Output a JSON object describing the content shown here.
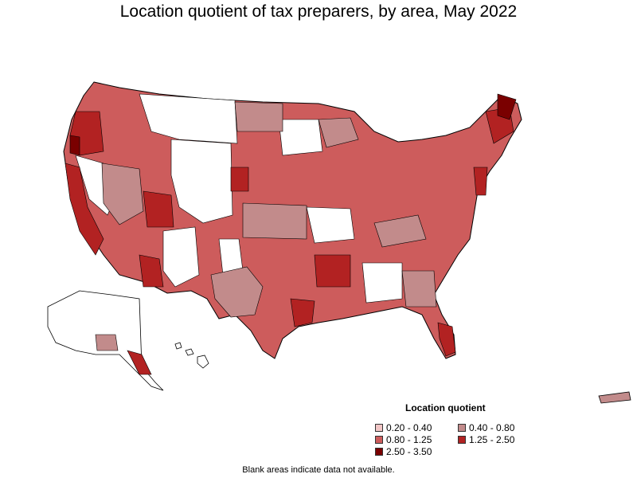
{
  "title": "Location quotient of tax preparers, by area, May 2022",
  "legend": {
    "title": "Location quotient",
    "items": [
      {
        "label": "0.20 - 0.40",
        "color": "#f2c6c6"
      },
      {
        "label": "0.40 - 0.80",
        "color": "#c28b8b"
      },
      {
        "label": "0.80 - 1.25",
        "color": "#cd5c5c"
      },
      {
        "label": "1.25 - 2.50",
        "color": "#b22222"
      },
      {
        "label": "2.50 - 3.50",
        "color": "#7a0000"
      }
    ]
  },
  "footnote": "Blank areas indicate data not available.",
  "colors": {
    "no_data": "#ffffff",
    "border": "#000000"
  }
}
